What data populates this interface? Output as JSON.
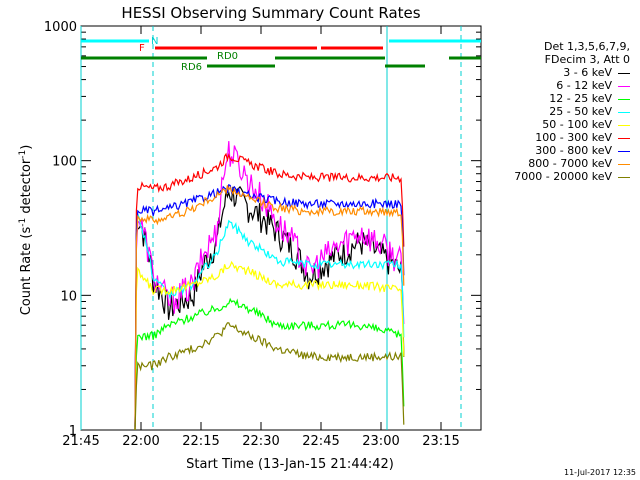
{
  "chart_data": {
    "type": "line",
    "title": "HESSI Observing Summary Count Rates",
    "xlabel": "Start Time (13-Jan-15 21:44:42)",
    "ylabel_main": "Count Rate (s",
    "ylabel_sup1": "-1",
    "ylabel_mid": " detector",
    "ylabel_sup2": "-1",
    "ylabel_end": ")",
    "yscale": "log",
    "ylim": [
      1,
      1000
    ],
    "xlim_minutes": [
      0,
      100
    ],
    "x_ticks": [
      "21:45",
      "22:00",
      "22:15",
      "22:30",
      "22:45",
      "23:00",
      "23:15"
    ],
    "y_ticks": [
      "1",
      "10",
      "100",
      "1000"
    ],
    "legend_header": [
      "Det 1,3,5,6,7,9,",
      "FDecim 3, Att 0"
    ],
    "series": [
      {
        "name": "3 - 6 keV",
        "color": "#000000",
        "levels": [
          0,
          40,
          13,
          8,
          10,
          25,
          60,
          45,
          30,
          14,
          25,
          15,
          0
        ]
      },
      {
        "name": "6 - 12 keV",
        "color": "#ff00ff",
        "levels": [
          0,
          40,
          14,
          9,
          12,
          30,
          120,
          70,
          35,
          15,
          30,
          18,
          0
        ]
      },
      {
        "name": "12 - 25 keV",
        "color": "#00ff00",
        "levels": [
          0,
          5,
          5,
          6,
          7,
          8,
          9,
          8,
          6,
          6,
          6,
          5,
          0
        ]
      },
      {
        "name": "25 - 50 keV",
        "color": "#00ffff",
        "levels": [
          0,
          40,
          13,
          10,
          12,
          20,
          35,
          25,
          18,
          17,
          17,
          17,
          0
        ]
      },
      {
        "name": "50 - 100 keV",
        "color": "#ffff00",
        "levels": [
          0,
          15,
          11,
          11,
          12,
          14,
          17,
          15,
          12,
          12,
          12,
          11,
          0
        ]
      },
      {
        "name": "100 - 300 keV",
        "color": "#ff0000",
        "levels": [
          0,
          65,
          62,
          65,
          75,
          90,
          110,
          95,
          80,
          75,
          75,
          75,
          0
        ]
      },
      {
        "name": "300 - 800 keV",
        "color": "#0000ff",
        "levels": [
          0,
          43,
          42,
          44,
          50,
          58,
          62,
          55,
          50,
          48,
          48,
          48,
          0
        ]
      },
      {
        "name": "800 - 7000 keV",
        "color": "#ff8c00",
        "levels": [
          0,
          38,
          36,
          38,
          44,
          55,
          62,
          52,
          45,
          42,
          42,
          42,
          0
        ]
      },
      {
        "name": "7000 - 20000 keV",
        "color": "#808000",
        "levels": [
          0,
          3,
          3,
          3.5,
          4,
          5,
          6,
          5,
          4,
          3.5,
          3.5,
          3.5,
          0
        ]
      }
    ],
    "annotations": {
      "N": "N",
      "F": "F",
      "RD0": "RD0",
      "RD6": "RD6"
    }
  },
  "footer_date": "11-Jul-2017 12:35"
}
